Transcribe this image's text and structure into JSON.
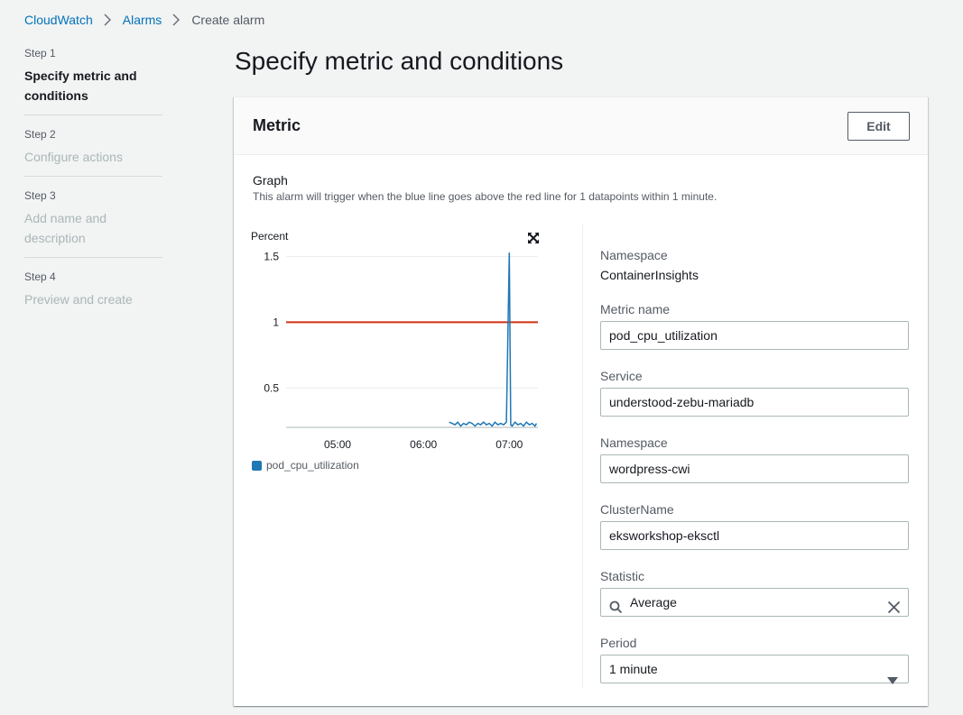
{
  "breadcrumb": {
    "items": [
      "CloudWatch",
      "Alarms"
    ],
    "current": "Create alarm"
  },
  "steps": [
    {
      "num": "Step 1",
      "title": "Specify metric and conditions",
      "active": true
    },
    {
      "num": "Step 2",
      "title": "Configure actions",
      "active": false
    },
    {
      "num": "Step 3",
      "title": "Add name and description",
      "active": false
    },
    {
      "num": "Step 4",
      "title": "Preview and create",
      "active": false
    }
  ],
  "page": {
    "title": "Specify metric and conditions"
  },
  "panel": {
    "title": "Metric",
    "edit_label": "Edit",
    "graph_heading": "Graph",
    "graph_description": "This alarm will trigger when the blue line goes above the red line for 1 datapoints within 1 minute."
  },
  "fields": {
    "namespace_label": "Namespace",
    "namespace_value": "ContainerInsights",
    "metric_name_label": "Metric name",
    "metric_name_value": "pod_cpu_utilization",
    "service_label": "Service",
    "service_value": "understood-zebu-mariadb",
    "k8s_namespace_label": "Namespace",
    "k8s_namespace_value": "wordpress-cwi",
    "cluster_label": "ClusterName",
    "cluster_value": "eksworkshop-eksctl",
    "statistic_label": "Statistic",
    "statistic_value": "Average",
    "period_label": "Period",
    "period_value": "1 minute"
  },
  "icons": {
    "breadcrumb_separator": "chevron-right-icon",
    "expand": "expand-icon",
    "search": "search-icon",
    "clear": "close-icon",
    "dropdown": "caret-down-icon"
  },
  "colors": {
    "link": "#0073bb",
    "series": "#1f77b4",
    "threshold": "#d13212"
  },
  "chart_data": {
    "type": "line",
    "ylabel": "Percent",
    "y_ticks": [
      "1.5",
      "1",
      "0.5"
    ],
    "x_ticks": [
      "05:00",
      "06:00",
      "07:00"
    ],
    "ylim": [
      0.2,
      1.6
    ],
    "xlim": [
      "04:24",
      "07:20"
    ],
    "grid": true,
    "legend": "bottom-left",
    "threshold": {
      "value": 1,
      "color": "#d13212"
    },
    "series": [
      {
        "name": "pod_cpu_utilization",
        "color": "#1f77b4",
        "x": [
          "06:18",
          "06:20",
          "06:22",
          "06:24",
          "06:26",
          "06:28",
          "06:30",
          "06:32",
          "06:34",
          "06:36",
          "06:38",
          "06:40",
          "06:42",
          "06:44",
          "06:46",
          "06:48",
          "06:50",
          "06:52",
          "06:54",
          "06:56",
          "06:58",
          "07:00",
          "07:01",
          "07:02",
          "07:04",
          "07:06",
          "07:08",
          "07:10",
          "07:12",
          "07:14",
          "07:16",
          "07:18",
          "07:19"
        ],
        "values": [
          0.24,
          0.23,
          0.22,
          0.24,
          0.21,
          0.23,
          0.22,
          0.24,
          0.23,
          0.21,
          0.23,
          0.22,
          0.24,
          0.22,
          0.23,
          0.21,
          0.24,
          0.22,
          0.23,
          0.22,
          0.24,
          1.53,
          0.22,
          0.21,
          0.24,
          0.22,
          0.23,
          0.21,
          0.24,
          0.22,
          0.23,
          0.21,
          0.23
        ]
      }
    ]
  }
}
